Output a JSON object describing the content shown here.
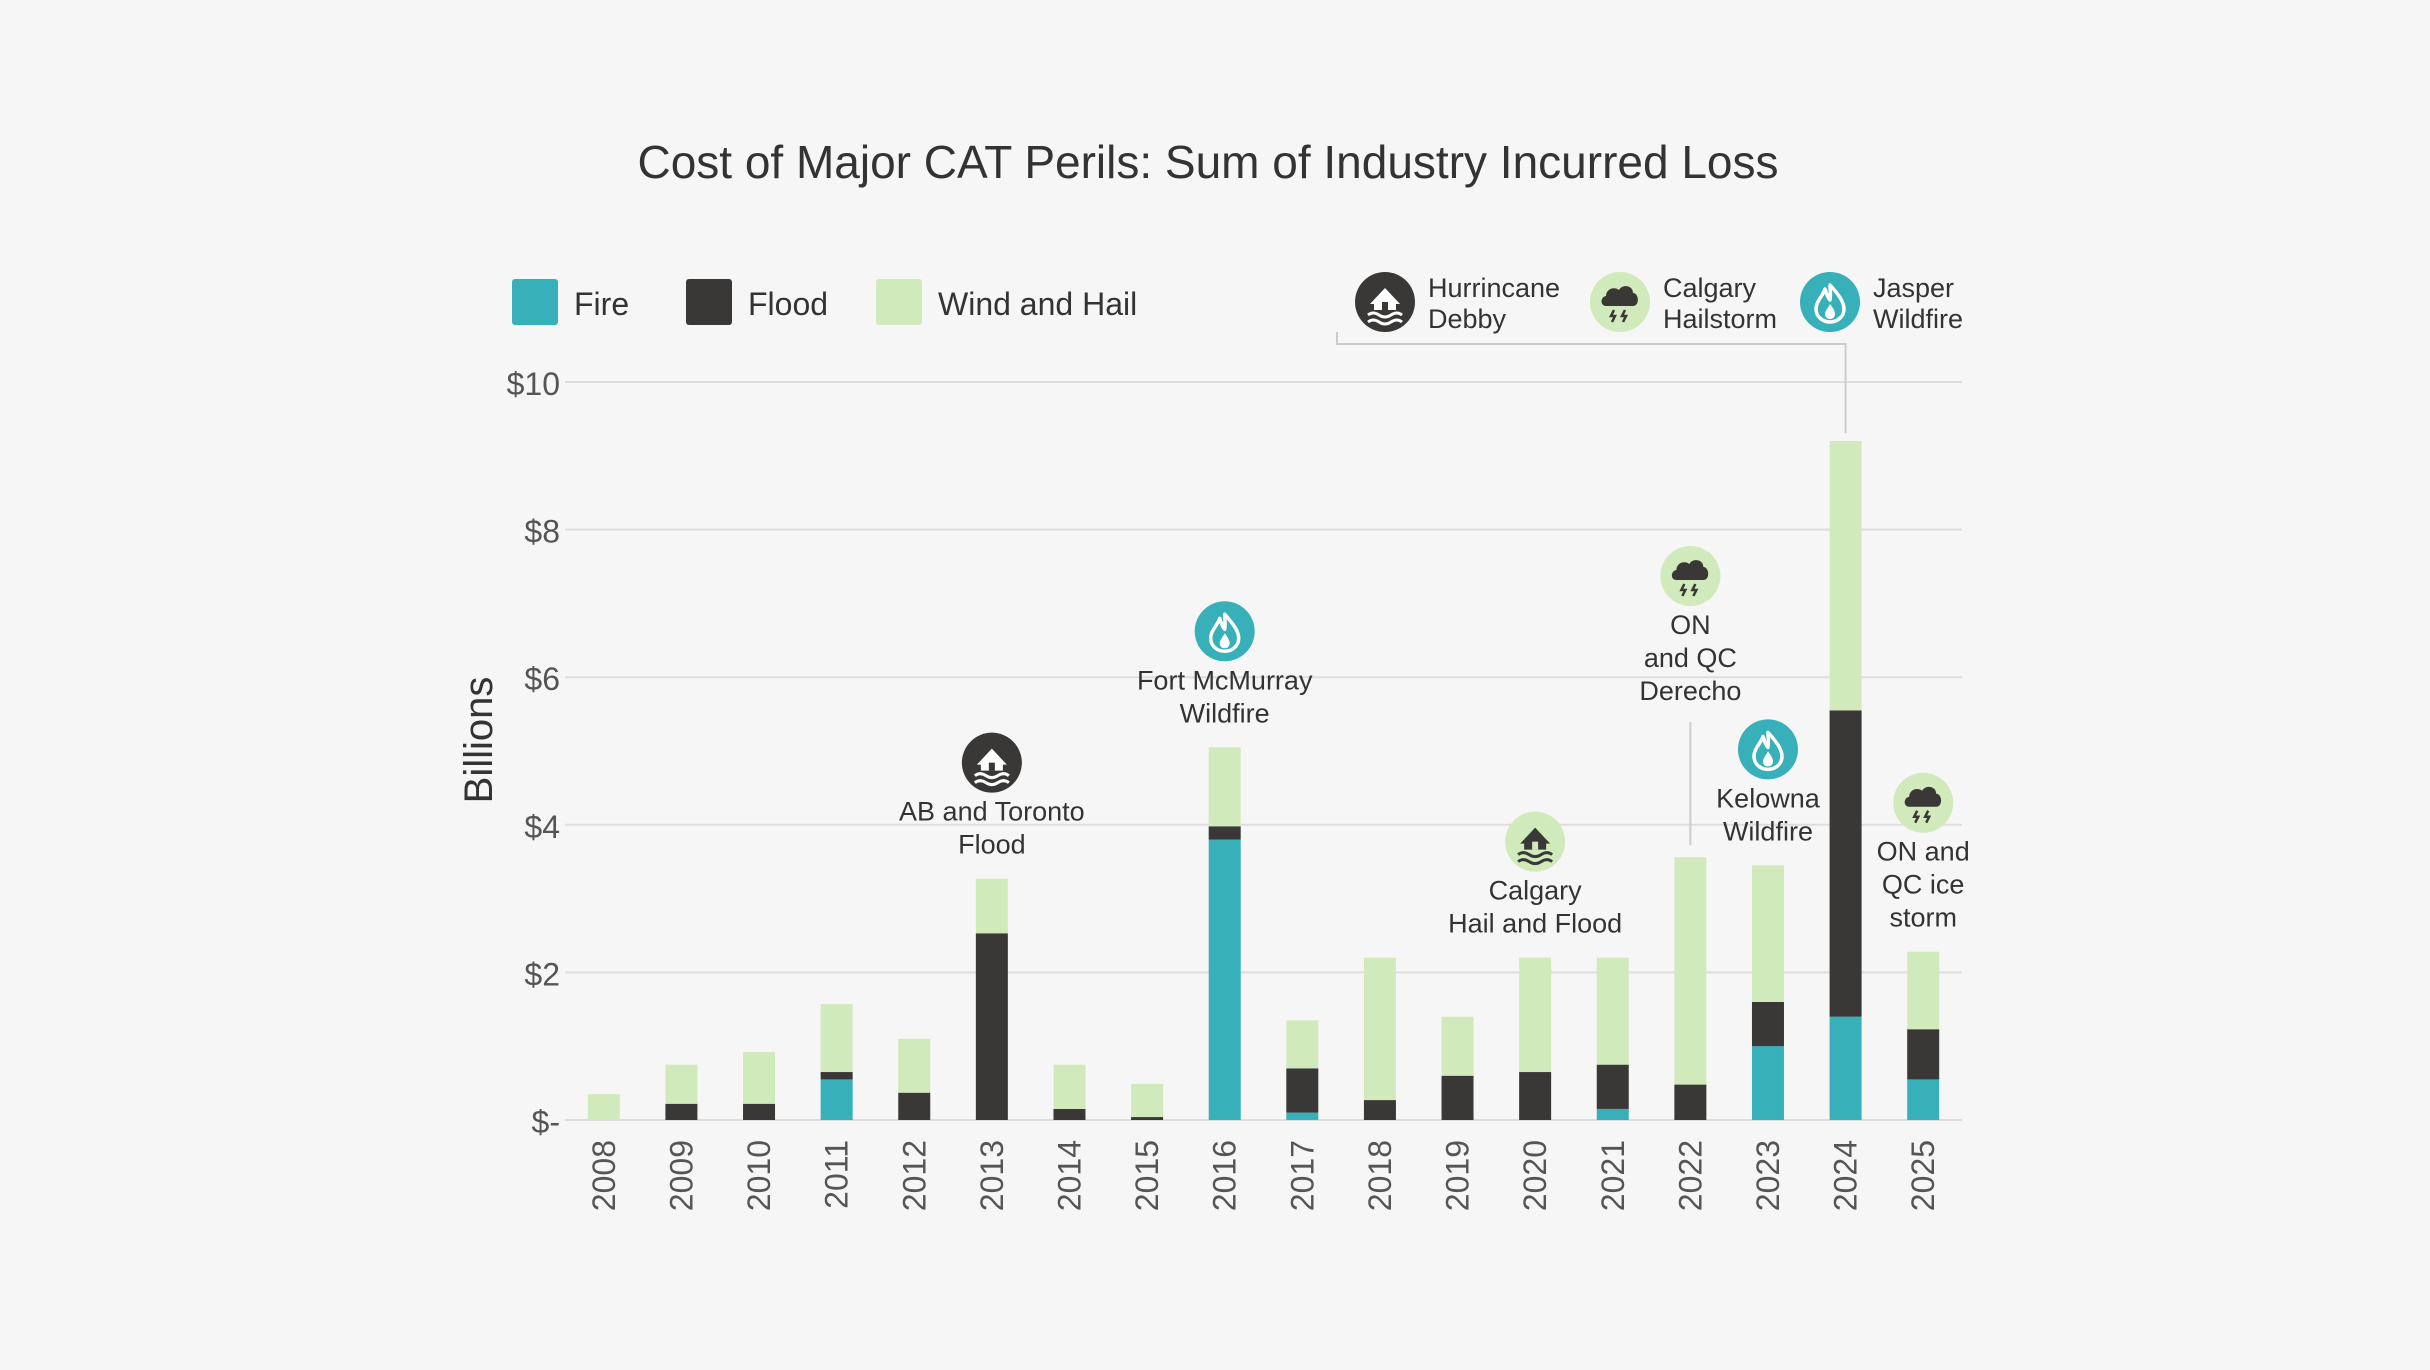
{
  "chart_data": {
    "type": "bar",
    "stacked": true,
    "title": "Cost of Major CAT Perils: Sum of Industry Incurred Loss",
    "ylabel": "Billions",
    "xlabel": "",
    "ylim": [
      0,
      10
    ],
    "y_ticks": [
      {
        "value": 0,
        "label": "$-"
      },
      {
        "value": 2,
        "label": "$2"
      },
      {
        "value": 4,
        "label": "$4"
      },
      {
        "value": 6,
        "label": "$6"
      },
      {
        "value": 8,
        "label": "$8"
      },
      {
        "value": 10,
        "label": "$10"
      }
    ],
    "grid": true,
    "legend_placement": "top-left",
    "categories": [
      "2008",
      "2009",
      "2010",
      "2011",
      "2012",
      "2013",
      "2014",
      "2015",
      "2016",
      "2017",
      "2018",
      "2019",
      "2020",
      "2021",
      "2022",
      "2023",
      "2024",
      "2025"
    ],
    "series": [
      {
        "name": "Fire",
        "color": "#37b0b9",
        "values": [
          0.0,
          0.0,
          0.0,
          0.55,
          0.0,
          0.0,
          0.0,
          0.0,
          3.8,
          0.1,
          0.0,
          0.0,
          0.0,
          0.15,
          0.0,
          1.0,
          1.4,
          0.55
        ]
      },
      {
        "name": "Flood",
        "color": "#393836",
        "values": [
          0.0,
          0.22,
          0.22,
          0.1,
          0.37,
          2.53,
          0.15,
          0.04,
          0.18,
          0.6,
          0.27,
          0.6,
          0.65,
          0.6,
          0.48,
          0.6,
          4.15,
          0.68
        ]
      },
      {
        "name": "Wind and Hail",
        "color": "#d1eabb",
        "values": [
          0.35,
          0.53,
          0.7,
          0.92,
          0.73,
          0.74,
          0.6,
          0.45,
          1.07,
          0.65,
          1.93,
          0.8,
          1.55,
          1.45,
          3.08,
          1.85,
          3.65,
          1.05
        ]
      }
    ],
    "annotations": [
      {
        "year": "2013",
        "label": [
          "AB and Toronto",
          "Flood"
        ],
        "icon": "flood-house-icon",
        "icon_style": "dark"
      },
      {
        "year": "2016",
        "label": [
          "Fort McMurray",
          "Wildfire"
        ],
        "icon": "flame-icon",
        "icon_style": "teal"
      },
      {
        "year": "2020",
        "label": [
          "Calgary",
          "Hail and Flood"
        ],
        "icon": "flood-house-icon",
        "icon_style": "green"
      },
      {
        "year": "2022",
        "label": [
          "ON",
          "and QC",
          "Derecho"
        ],
        "icon": "hail-cloud-icon",
        "icon_style": "green"
      },
      {
        "year": "2023",
        "label": [
          "Kelowna",
          "Wildfire"
        ],
        "icon": "flame-icon",
        "icon_style": "teal"
      },
      {
        "year": "2025",
        "label": [
          "ON and",
          "QC ice",
          "storm"
        ],
        "icon": "hail-cloud-icon",
        "icon_style": "green"
      }
    ],
    "callout_2024": [
      {
        "label": [
          "Hurrincane",
          "Debby"
        ],
        "icon": "flood-house-icon",
        "icon_style": "dark"
      },
      {
        "label": [
          "Calgary",
          "Hailstorm"
        ],
        "icon": "hail-cloud-icon",
        "icon_style": "green"
      },
      {
        "label": [
          "Jasper",
          "Wildfire"
        ],
        "icon": "flame-icon",
        "icon_style": "teal"
      }
    ]
  },
  "colors": {
    "background": "#f6f6f6",
    "grid": "#dddddd",
    "text": "#333333",
    "axis_text": "#555555",
    "fire": "#37b0b9",
    "flood": "#393836",
    "wind_hail": "#d1eabb"
  }
}
